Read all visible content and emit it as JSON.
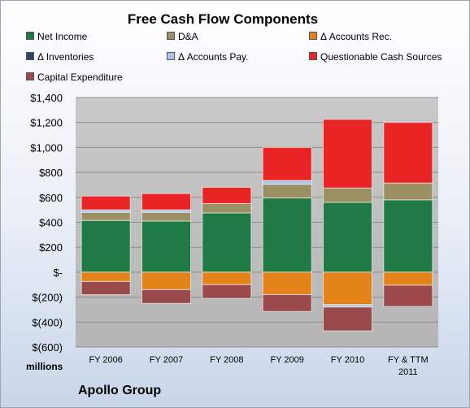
{
  "chart_data": {
    "type": "bar",
    "stacked": true,
    "title": "Free Cash Flow Components",
    "company": "Apollo Group",
    "units_label": "millions",
    "categories": [
      "FY 2006",
      "FY 2007",
      "FY 2008",
      "FY 2009",
      "FY 2010",
      "FY & TTM 2011"
    ],
    "ylim": [
      -600,
      1400
    ],
    "yticks": [
      1400,
      1200,
      1000,
      800,
      600,
      400,
      200,
      0,
      -200,
      -400,
      -600
    ],
    "ytick_labels": [
      "$1,400",
      "$1,200",
      "$1,000",
      "$800",
      "$600",
      "$400",
      "$200",
      "$-",
      "$(200)",
      "$(400)",
      "$(600)"
    ],
    "grid": true,
    "legend_position": "top",
    "series": [
      {
        "name": "Net Income",
        "color": "#1f7a45",
        "values": [
          415,
          410,
          475,
          595,
          560,
          580
        ]
      },
      {
        "name": "D&A",
        "color": "#9a9063",
        "values": [
          65,
          70,
          75,
          110,
          115,
          135
        ]
      },
      {
        "name": "Δ Accounts Rec.",
        "color": "#e3831a",
        "values": [
          -75,
          -140,
          -100,
          -180,
          -260,
          -105
        ]
      },
      {
        "name": "Δ Inventories",
        "color": "#2e4466",
        "values": [
          0,
          0,
          0,
          0,
          0,
          0
        ]
      },
      {
        "name": "Δ Accounts Pay.",
        "color": "#a9c4e8",
        "values": [
          20,
          20,
          0,
          30,
          -20,
          0
        ]
      },
      {
        "name": "Questionable Cash Sources",
        "color": "#e82424",
        "values": [
          110,
          130,
          130,
          265,
          550,
          485
        ]
      },
      {
        "name": "Capital Expenditure",
        "color": "#9a4a4a",
        "values": [
          -105,
          -110,
          -110,
          -135,
          -190,
          -170
        ]
      }
    ]
  }
}
